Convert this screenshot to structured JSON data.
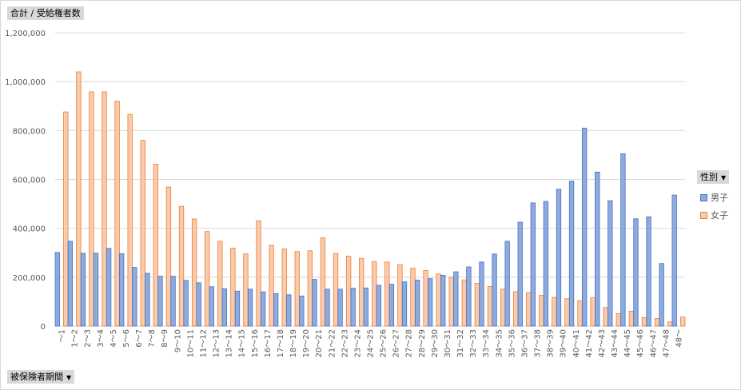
{
  "value_field": {
    "label": "合計 / 受給権者数"
  },
  "axis_field": {
    "label": "被保険者期間"
  },
  "legend_field": {
    "label": "性別"
  },
  "filter_arrow": "▼",
  "chart_data": {
    "type": "bar",
    "ylim": [
      0,
      1200000
    ],
    "y_ticks": [
      0,
      200000,
      400000,
      600000,
      800000,
      1000000,
      1200000
    ],
    "y_tick_labels": [
      "0",
      "200,000",
      "400,000",
      "600,000",
      "800,000",
      "1,000,000",
      "1,200,000"
    ],
    "grid": true,
    "legend_placement": "right",
    "categories": [
      "～1",
      "1～2",
      "2～3",
      "3～4",
      "4～5",
      "5～6",
      "6～7",
      "7～8",
      "8～9",
      "9～10",
      "10～11",
      "11～12",
      "12～13",
      "13～14",
      "14～15",
      "15～16",
      "16～17",
      "17～18",
      "18～19",
      "19～20",
      "20～21",
      "21～22",
      "22～23",
      "23～24",
      "24～25",
      "25～26",
      "26～27",
      "27～28",
      "28～29",
      "29～30",
      "30～31",
      "31～32",
      "32～33",
      "33～34",
      "34～35",
      "35～36",
      "36～37",
      "37～38",
      "38～39",
      "39～40",
      "40～41",
      "41～42",
      "42～43",
      "43～44",
      "44～45",
      "45～46",
      "46～47",
      "47～48",
      "48～"
    ],
    "series": [
      {
        "name": "男子",
        "color": "#4472c4",
        "fill": "#8faadc",
        "values": [
          301000,
          347000,
          298000,
          298000,
          318000,
          296000,
          240000,
          216000,
          204000,
          204000,
          187000,
          177000,
          161000,
          153000,
          143000,
          151000,
          140000,
          133000,
          128000,
          123000,
          191000,
          151000,
          151000,
          155000,
          156000,
          167000,
          171000,
          181000,
          188000,
          194000,
          208000,
          222000,
          242000,
          262000,
          295000,
          347000,
          425000,
          504000,
          510000,
          560000,
          593000,
          810000,
          630000,
          513000,
          705000,
          439000,
          447000,
          256000,
          536000
        ]
      },
      {
        "name": "女子",
        "color": "#ed7d31",
        "fill": "#f8cbad",
        "values": [
          876000,
          1040000,
          958000,
          958000,
          920000,
          866000,
          760000,
          662000,
          569000,
          490000,
          438000,
          387000,
          347000,
          319000,
          295000,
          431000,
          331000,
          315000,
          305000,
          308000,
          361000,
          297000,
          286000,
          277000,
          264000,
          262000,
          251000,
          237000,
          227000,
          213000,
          200000,
          189000,
          175000,
          162000,
          151000,
          141000,
          137000,
          126000,
          117000,
          112000,
          104000,
          116000,
          76000,
          51000,
          61000,
          35000,
          31000,
          17000,
          37000
        ]
      }
    ]
  }
}
